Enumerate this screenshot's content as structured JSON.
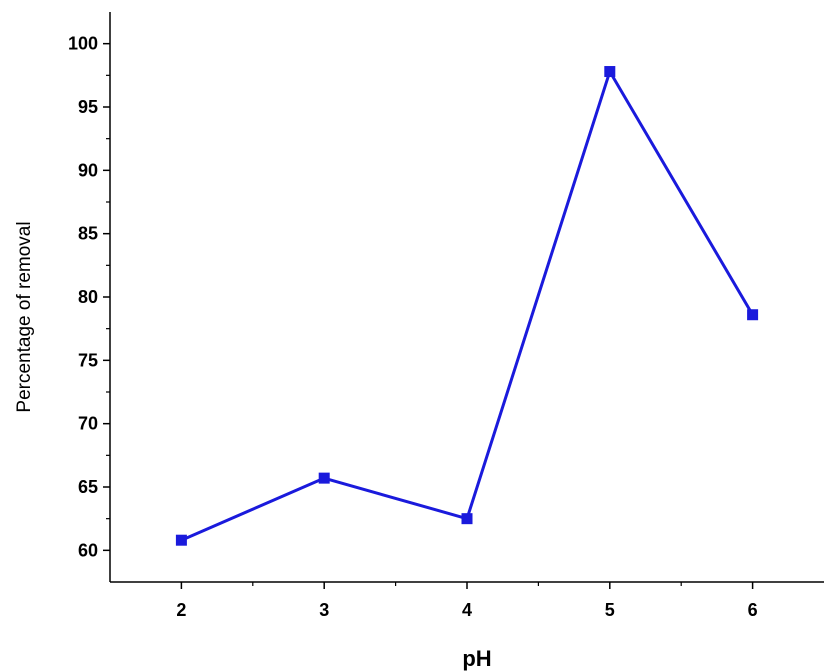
{
  "chart_data": {
    "type": "line",
    "xlabel": "pH",
    "ylabel": "Percentage of removal",
    "xlim": [
      1.5,
      6.5
    ],
    "ylim": [
      57.5,
      102.5
    ],
    "x_ticks": [
      2,
      3,
      4,
      5,
      6
    ],
    "y_ticks": [
      60,
      65,
      70,
      75,
      80,
      85,
      90,
      95,
      100
    ],
    "grid": false,
    "legend": "none",
    "series": [
      {
        "color": "#1a1adc",
        "marker": "square",
        "points": [
          {
            "x": 2,
            "y": 60.8
          },
          {
            "x": 3,
            "y": 65.7
          },
          {
            "x": 4,
            "y": 62.5
          },
          {
            "x": 5,
            "y": 97.8
          },
          {
            "x": 6,
            "y": 78.6
          }
        ]
      }
    ]
  }
}
